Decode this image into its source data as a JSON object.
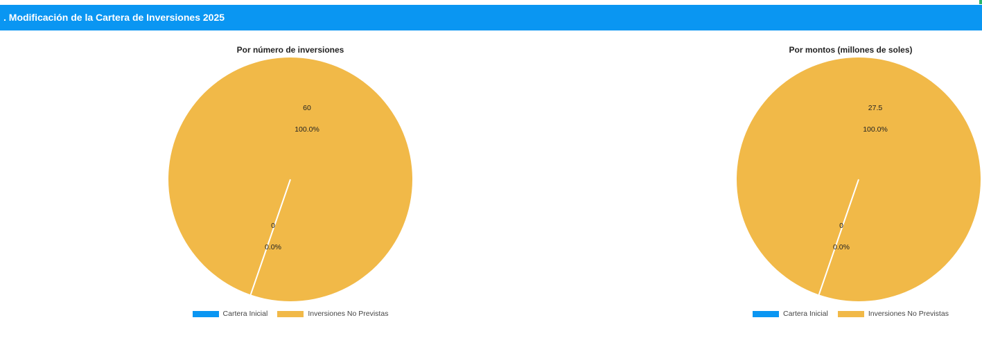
{
  "header": {
    "title": ". Modificación de la Cartera de Inversiones 2025",
    "color": "#0a96f2"
  },
  "colors": {
    "cartera_inicial": "#0a96f2",
    "inversiones_no_previstas": "#f1b948"
  },
  "chart_data": [
    {
      "type": "pie",
      "title": "Por número de inversiones",
      "categories": [
        "Cartera Inicial",
        "Inversiones No Previstas"
      ],
      "values": [
        0,
        60
      ],
      "percent_labels": [
        "0.0%",
        "100.0%"
      ],
      "value_labels": [
        "0",
        "60"
      ],
      "legend": [
        "Cartera Inicial",
        "Inversiones No Previstas"
      ],
      "legend_position": "bottom"
    },
    {
      "type": "pie",
      "title": "Por montos (millones de soles)",
      "categories": [
        "Cartera Inicial",
        "Inversiones No Previstas"
      ],
      "values": [
        0,
        27.5
      ],
      "percent_labels": [
        "0.0%",
        "100.0%"
      ],
      "value_labels": [
        "0",
        "27.5"
      ],
      "legend": [
        "Cartera Inicial",
        "Inversiones No Previstas"
      ],
      "legend_position": "bottom"
    }
  ]
}
